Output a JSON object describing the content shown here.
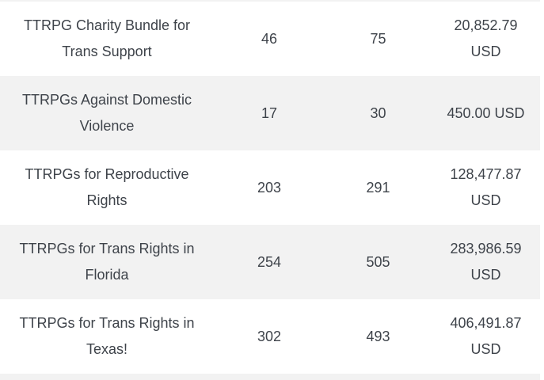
{
  "theme": {
    "row_stripe_color": "#f2f2f2",
    "text_color": "#3e434a",
    "background_color": "#ffffff"
  },
  "table": {
    "rows": [
      {
        "name": "TTRPG Charity Bundle for Trans Support",
        "count_a": "46",
        "count_b": "75",
        "raised": "20,852.79 USD"
      },
      {
        "name": "TTRPGs Against Domestic Violence",
        "count_a": "17",
        "count_b": "30",
        "raised": "450.00 USD"
      },
      {
        "name": "TTRPGs for Reproductive Rights",
        "count_a": "203",
        "count_b": "291",
        "raised": "128,477.87 USD"
      },
      {
        "name": "TTRPGs for Trans Rights in Florida",
        "count_a": "254",
        "count_b": "505",
        "raised": "283,986.59 USD"
      },
      {
        "name": "TTRPGs for Trans Rights in Texas!",
        "count_a": "302",
        "count_b": "493",
        "raised": "406,491.87 USD"
      }
    ]
  }
}
